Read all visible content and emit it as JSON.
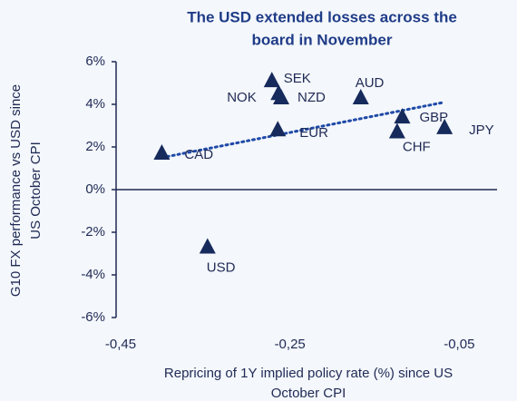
{
  "chart_data": {
    "type": "scatter",
    "title": [
      "The USD extended losses across the",
      "board in November"
    ],
    "x_label": [
      "Repricing of 1Y implied policy rate (%) since US",
      "October CPI"
    ],
    "y_label": [
      "G10 FX performance vs USD since",
      "US October CPI"
    ],
    "labels": [
      "CAD",
      "USD",
      "SEK",
      "NOK",
      "NZD",
      "EUR",
      "AUD",
      "GBP",
      "CHF",
      "JPY"
    ],
    "x": [
      -0.396,
      -0.342,
      -0.266,
      -0.258,
      -0.255,
      -0.259,
      -0.161,
      -0.112,
      -0.118,
      -0.062
    ],
    "values": [
      1.7,
      -2.7,
      5.1,
      4.5,
      4.3,
      2.8,
      4.3,
      3.4,
      2.7,
      2.9
    ],
    "color": "#162a5c",
    "trendline": {
      "x": [
        -0.396,
        -0.062
      ],
      "y": [
        1.5,
        4.1
      ],
      "color": "#1f4aa8"
    },
    "xlim": [
      -0.45,
      0
    ],
    "xticks": [
      {
        "value": -0.45,
        "label": "-0,45"
      },
      {
        "value": -0.25,
        "label": "-0,25"
      },
      {
        "value": -0.05,
        "label": "-0,05"
      }
    ],
    "ylim": [
      -6,
      6
    ],
    "yticks": [
      {
        "value": -6,
        "label": "-6%"
      },
      {
        "value": -4,
        "label": "-4%"
      },
      {
        "value": -2,
        "label": "-2%"
      },
      {
        "value": 0,
        "label": "0%"
      },
      {
        "value": 2,
        "label": "2%"
      },
      {
        "value": 4,
        "label": "4%"
      },
      {
        "value": 6,
        "label": "6%"
      }
    ]
  }
}
